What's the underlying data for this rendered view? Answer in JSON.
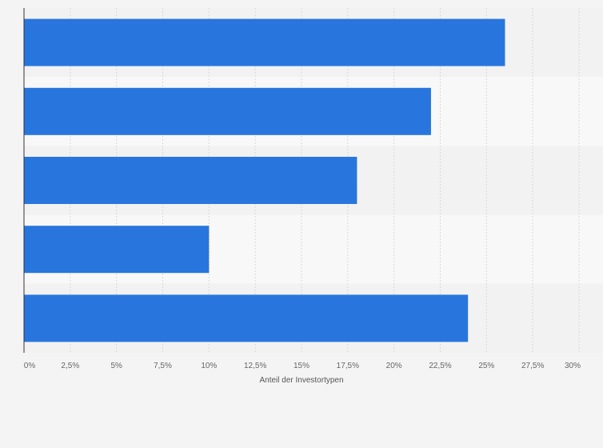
{
  "chart_data": {
    "type": "bar",
    "orientation": "horizontal",
    "title": "",
    "xlabel": "Anteil der Investortypen",
    "ylabel": "",
    "categories": [
      "",
      "",
      "",
      "",
      ""
    ],
    "values": [
      26,
      22,
      18,
      10,
      24
    ],
    "value_unit": "%",
    "xlim": [
      0,
      30
    ],
    "ticks": [
      "0%",
      "2,5%",
      "5%",
      "7,5%",
      "10%",
      "12,5%",
      "15%",
      "17,5%",
      "20%",
      "22,5%",
      "25%",
      "27,5%",
      "30%"
    ],
    "tick_values": [
      0,
      2.5,
      5,
      7.5,
      10,
      12.5,
      15,
      17.5,
      20,
      22.5,
      25,
      27.5,
      30
    ],
    "grid": true,
    "legend": "none",
    "colors": {
      "bar": "#2876dd",
      "band_light": "#f8f8f8",
      "band_dark": "#f2f2f2",
      "page_background": "#f4f4f4",
      "gridline": "#d9d9d9",
      "axis": "#333333"
    }
  }
}
